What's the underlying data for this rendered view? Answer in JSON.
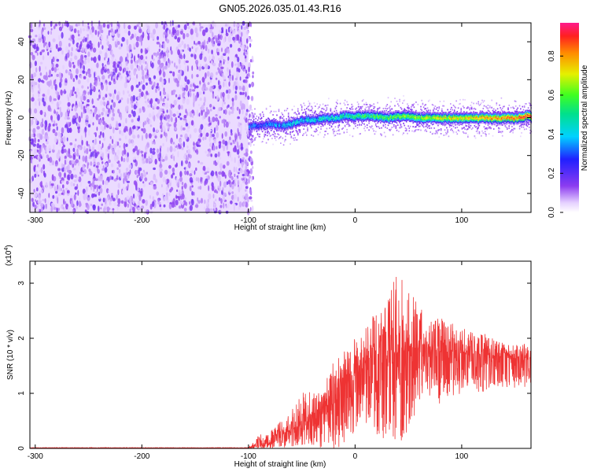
{
  "title": "GN05.2026.035.01.43.R16",
  "chart_data": [
    {
      "type": "heatmap",
      "xlabel": "Height of straight line (km)",
      "ylabel": "Frequency (Hz)",
      "xlim": [
        -305,
        165
      ],
      "ylim": [
        -50,
        50
      ],
      "xticks": [
        -300,
        -200,
        -100,
        0,
        100
      ],
      "yticks": [
        -40,
        -20,
        0,
        20,
        40
      ],
      "ridge": {
        "height_km": [
          -100,
          -90,
          -80,
          -70,
          -60,
          -50,
          -40,
          -30,
          -20,
          -10,
          0,
          10,
          20,
          30,
          40,
          50,
          60,
          70,
          80,
          90,
          100,
          110,
          120,
          130,
          140,
          150,
          160
        ],
        "frequency_hz": [
          -4,
          -4,
          -3,
          -4,
          -3,
          -1,
          -1,
          0,
          0,
          1,
          1,
          1,
          1,
          0,
          1,
          1,
          0,
          0,
          0,
          0,
          0,
          0,
          0,
          0,
          0,
          0,
          1
        ]
      },
      "noise_region_km": [
        -305,
        -100
      ],
      "colorbar": {
        "label": "Normalized spectral amplitude",
        "ticks": [
          0.0,
          0.2,
          0.4,
          0.6,
          0.8
        ],
        "range": [
          0,
          0.97
        ]
      }
    },
    {
      "type": "line",
      "xlabel": "Height of straight line (km)",
      "ylabel": "SNR (10 * v/v)",
      "multiplier": "(x10",
      "multiplier_exp": "4",
      "multiplier_close": ")",
      "xlim": [
        -305,
        165
      ],
      "ylim": [
        0,
        3.4
      ],
      "xticks": [
        -300,
        -200,
        -100,
        0,
        100
      ],
      "yticks": [
        0,
        1,
        2,
        3
      ],
      "color": "#ee3333",
      "envelope": {
        "x": [
          -305,
          -100,
          -90,
          -80,
          -70,
          -60,
          -50,
          -40,
          -30,
          -20,
          -10,
          0,
          10,
          20,
          30,
          40,
          50,
          60,
          70,
          80,
          90,
          100,
          110,
          120,
          130,
          140,
          150,
          160,
          165
        ],
        "y": [
          0.02,
          0.02,
          0.25,
          0.3,
          0.5,
          0.7,
          1.0,
          1.1,
          1.1,
          1.6,
          1.9,
          2.0,
          2.2,
          2.5,
          2.8,
          3.2,
          2.9,
          2.6,
          2.3,
          2.4,
          2.3,
          2.2,
          2.1,
          2.1,
          2.0,
          1.9,
          1.9,
          1.9,
          1.8
        ]
      },
      "mean": {
        "x": [
          -305,
          -100,
          -80,
          -60,
          -40,
          -20,
          0,
          20,
          40,
          60,
          80,
          100,
          120,
          140,
          165
        ],
        "y": [
          0.01,
          0.01,
          0.1,
          0.35,
          0.55,
          0.9,
          1.3,
          1.5,
          1.75,
          1.8,
          1.75,
          1.75,
          1.7,
          1.65,
          1.65
        ]
      }
    }
  ]
}
